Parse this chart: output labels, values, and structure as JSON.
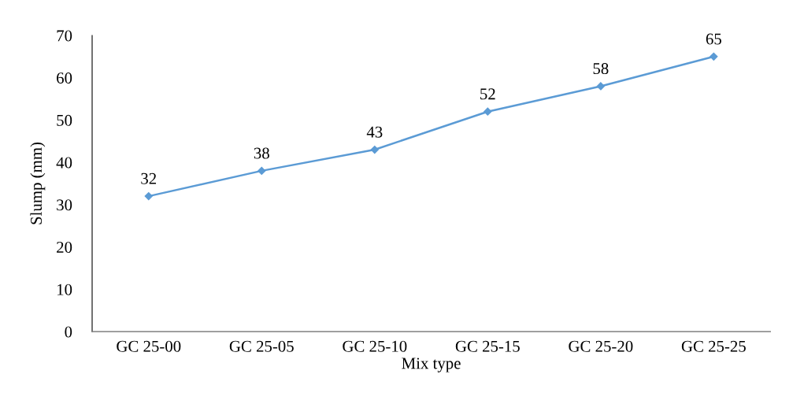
{
  "chart_data": {
    "type": "line",
    "xlabel": "Mix type",
    "ylabel": "Slump (mm)",
    "categories": [
      "GC 25-00",
      "GC 25-05",
      "GC 25-10",
      "GC 25-15",
      "GC 25-20",
      "GC 25-25"
    ],
    "series": [
      {
        "color": "#5b9bd5",
        "values": [
          32,
          38,
          43,
          52,
          58,
          65
        ]
      }
    ],
    "ylim": [
      0,
      70
    ],
    "yticks": [
      0,
      10,
      20,
      30,
      40,
      50,
      60,
      70
    ],
    "data_labels": true,
    "marker": "diamond",
    "line_style": "solid",
    "grid": false
  }
}
